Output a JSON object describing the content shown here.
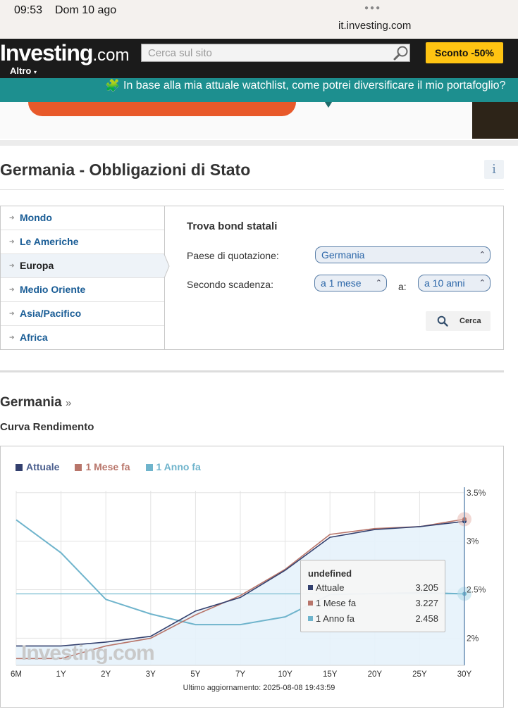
{
  "status_bar": {
    "time": "09:53",
    "date": "Dom 10 ago",
    "url": "it.investing.com"
  },
  "header": {
    "logo_main": "Investing",
    "logo_suffix": ".com",
    "search_placeholder": "Cerca sul sito",
    "promo_button": "Sconto -50%",
    "more_menu": "Altro"
  },
  "ai_banner": {
    "text": "In base alla mia attuale watchlist, come potrei diversificare il mio portafoglio?"
  },
  "page": {
    "title": "Germania - Obbligazioni di Stato",
    "info_glyph": "i"
  },
  "regions": [
    {
      "label": "Mondo",
      "active": false
    },
    {
      "label": "Le Americhe",
      "active": false
    },
    {
      "label": "Europa",
      "active": true
    },
    {
      "label": "Medio Oriente",
      "active": false
    },
    {
      "label": "Asia/Pacifico",
      "active": false
    },
    {
      "label": "Africa",
      "active": false
    }
  ],
  "bond_finder": {
    "title": "Trova bond statali",
    "country_label": "Paese di quotazione:",
    "country_value": "Germania",
    "maturity_label": "Secondo scadenza:",
    "from_value": "a 1 mese",
    "to_label": "a:",
    "to_value": "a 10 anni",
    "search_button": "Cerca"
  },
  "section": {
    "country_link": "Germania",
    "country_link_suffix": "»",
    "subtitle": "Curva Rendimento"
  },
  "chart_data": {
    "type": "line",
    "categories": [
      "6M",
      "1Y",
      "2Y",
      "3Y",
      "5Y",
      "7Y",
      "10Y",
      "15Y",
      "20Y",
      "25Y",
      "30Y"
    ],
    "series": [
      {
        "name": "Attuale",
        "color": "#33406e",
        "values": [
          1.92,
          1.92,
          1.96,
          2.02,
          2.28,
          2.42,
          2.7,
          3.04,
          3.12,
          3.15,
          3.205
        ]
      },
      {
        "name": "1 Mese fa",
        "color": "#b8756a",
        "values": [
          1.79,
          1.79,
          1.92,
          2.0,
          2.24,
          2.44,
          2.71,
          3.07,
          3.13,
          3.15,
          3.227
        ]
      },
      {
        "name": "1 Anno fa",
        "color": "#6fb4cc",
        "values": [
          3.22,
          2.88,
          2.4,
          2.25,
          2.14,
          2.14,
          2.22,
          2.45,
          2.46,
          2.47,
          2.458
        ]
      }
    ],
    "y_ticks": [
      2.0,
      2.5,
      3.0,
      3.5
    ],
    "y_tick_labels": [
      "2%",
      "2.5%",
      "3%",
      "3.5%"
    ],
    "ylim": [
      1.72,
      3.52
    ],
    "grid": true,
    "y_axis_side": "right",
    "legend_position": "top-left",
    "watermark": "Investing.com",
    "tooltip": {
      "title": "undefined",
      "rows": [
        {
          "name": "Attuale",
          "value": "3.205"
        },
        {
          "name": "1 Mese fa",
          "value": "3.227"
        },
        {
          "name": "1 Anno fa",
          "value": "2.458"
        }
      ]
    },
    "updated": "Ultimo aggiornamento: 2025-08-08 19:43:59"
  }
}
